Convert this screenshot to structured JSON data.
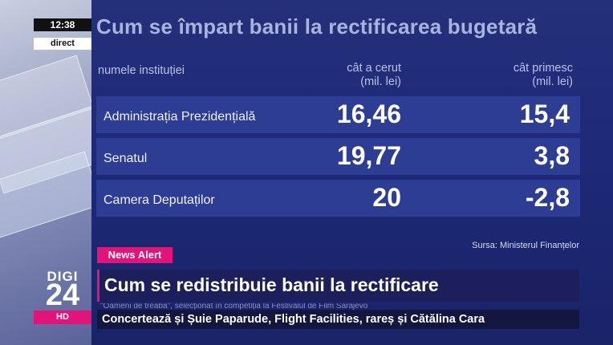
{
  "overlay": {
    "clock": "12:38",
    "live_label": "direct"
  },
  "graphic": {
    "title": "Cum se împart banii la rectificarea bugetară",
    "headers": {
      "name": "numele instituției",
      "requested": "cât a cerut\n(mil. lei)",
      "received": "cât primesc\n(mil. lei)"
    },
    "rows": [
      {
        "name": "Administrația Prezidențială",
        "requested": "16,46",
        "received": "15,4"
      },
      {
        "name": "Senatul",
        "requested": "19,77",
        "received": "3,8"
      },
      {
        "name": "Camera Deputaților",
        "requested": "20",
        "received": "-2,8"
      }
    ],
    "source": "Sursa: Ministerul Finanțelor"
  },
  "news": {
    "alert_label": "News Alert",
    "headline": "Cum se redistribuie banii la rectificare",
    "ticker_previous": "\"Oameni de treabă\", selecționat în competiția la Festivalul de Film Sarajevo",
    "ticker": "Concertează și Șuie Paparude, Flight Facilities, rareș și Cătălina Cara"
  },
  "logo": {
    "line1": "DIGI",
    "line2": "24",
    "line3": "HD"
  },
  "colors": {
    "accent": "#e4137a",
    "panel": "#1e2a78",
    "row": "#2d3d94"
  }
}
